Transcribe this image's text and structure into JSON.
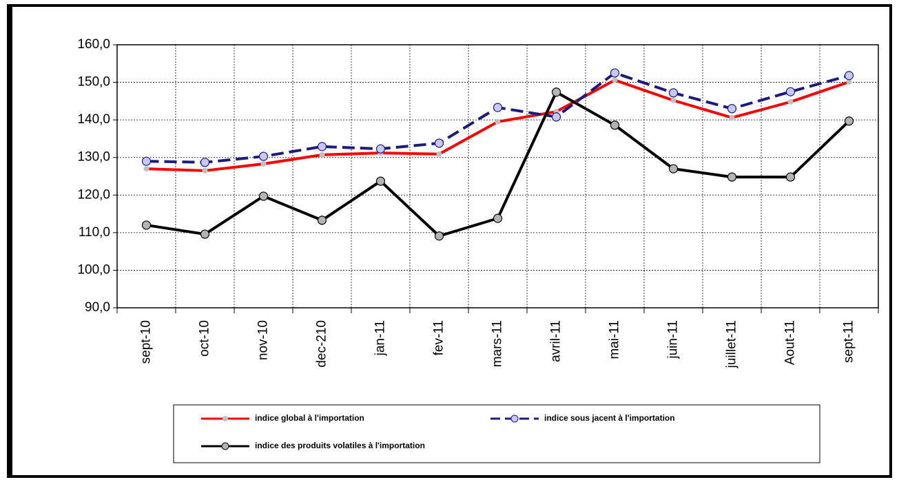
{
  "chart_data": {
    "type": "line",
    "categories": [
      "sept-10",
      "oct-10",
      "nov-10",
      "dec-210",
      "jan-11",
      "fev-11",
      "mars-11",
      "avril-11",
      "mai-11",
      "juin-11",
      "juillet-11",
      "Aout-11",
      "sept-11"
    ],
    "series": [
      {
        "name": "indice global à l'importation",
        "color": "#ff0000",
        "marker_color": "#c0c0c0",
        "dash": false,
        "values": [
          127.0,
          126.5,
          128.3,
          130.7,
          131.2,
          130.9,
          139.5,
          142.2,
          150.6,
          145.2,
          140.6,
          144.8,
          150.1
        ]
      },
      {
        "name": "indice sous jacent à l'importation",
        "color": "#1a1a80",
        "marker_color": "#c8c8f0",
        "dash": true,
        "values": [
          129.0,
          128.7,
          130.3,
          132.9,
          132.3,
          133.8,
          143.3,
          140.8,
          152.5,
          147.2,
          143.0,
          147.5,
          151.8
        ]
      },
      {
        "name": "indice des produits volatiles à l'importation",
        "color": "#000000",
        "marker_color": "#b4b4b4",
        "dash": false,
        "values": [
          112.0,
          109.6,
          119.7,
          113.3,
          123.7,
          109.1,
          113.8,
          147.4,
          138.6,
          127.0,
          124.8,
          124.8,
          139.7
        ]
      }
    ],
    "ylim": [
      90,
      160
    ],
    "yticks": [
      {
        "value": 90,
        "label": "90,0"
      },
      {
        "value": 100,
        "label": "100,0"
      },
      {
        "value": 110,
        "label": "110,0"
      },
      {
        "value": 120,
        "label": "120,0"
      },
      {
        "value": 130,
        "label": "130,0"
      },
      {
        "value": 140,
        "label": "140,0"
      },
      {
        "value": 150,
        "label": "150,0"
      },
      {
        "value": 160,
        "label": "160,0"
      }
    ],
    "grid": true,
    "legend": "bottom"
  }
}
